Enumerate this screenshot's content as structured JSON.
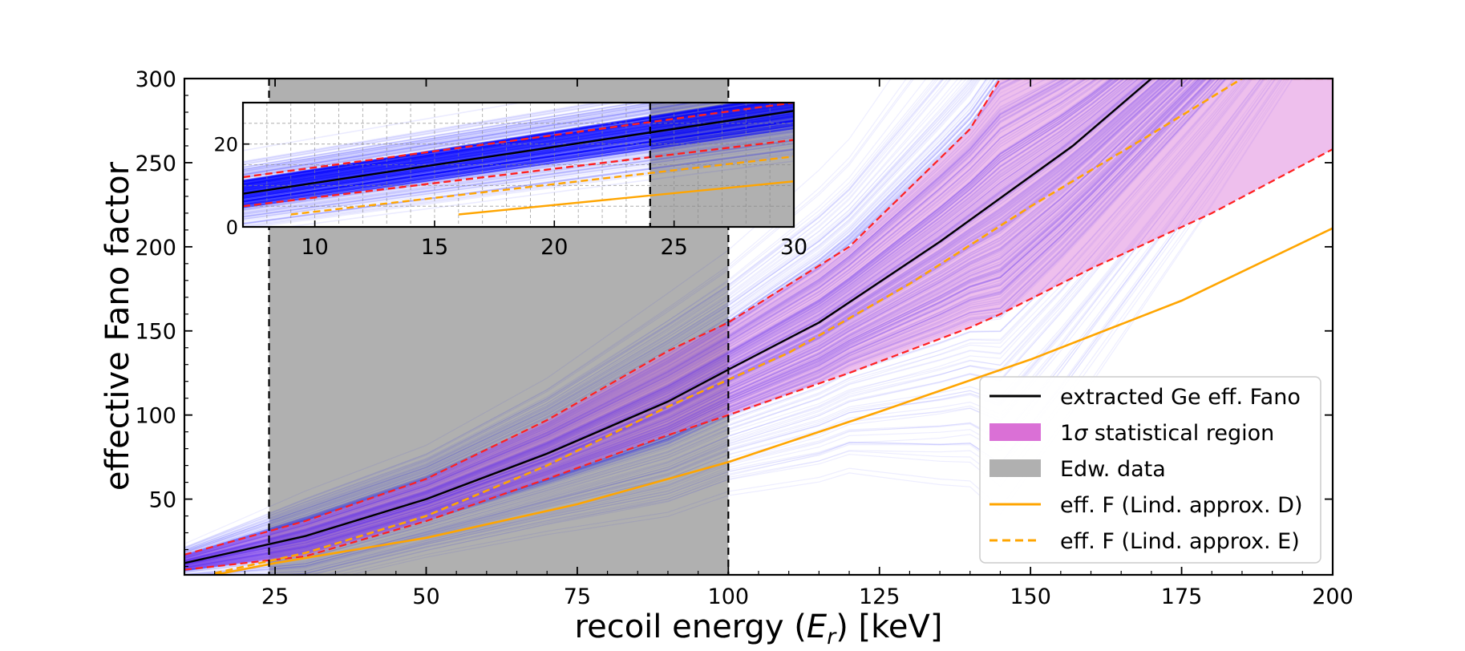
{
  "chart_data": [
    {
      "type": "line",
      "xlabel": "recoil energy (E_r) [keV]",
      "xlabel_parts": {
        "prefix": "recoil energy (",
        "symbol": "E",
        "subscript": "r",
        "suffix": ") [keV]"
      },
      "ylabel": "effective Fano factor",
      "xlim": [
        10,
        200
      ],
      "ylim": [
        5,
        300
      ],
      "xticks": [
        25,
        50,
        75,
        100,
        125,
        150,
        175,
        200
      ],
      "yticks": [
        50,
        100,
        150,
        200,
        250,
        300
      ],
      "grid": false,
      "legend_position": "lower-right",
      "shaded_regions": [
        {
          "name": "Edw. data",
          "x_range": [
            24,
            100
          ],
          "color": "#b0b0b0"
        }
      ],
      "vertical_lines": [
        24,
        100
      ],
      "series": [
        {
          "name": "extracted Ge eff. Fano",
          "color": "#000000",
          "style": "solid",
          "x": [
            10,
            20,
            30,
            50,
            70,
            90,
            100,
            115,
            135,
            157,
            170
          ],
          "values": [
            12,
            20,
            28,
            50,
            77,
            108,
            127,
            155,
            203,
            260,
            300
          ]
        },
        {
          "name": "1σ statistical region",
          "color": "#da70d6",
          "style": "band",
          "x": [
            10,
            30,
            50,
            70,
            90,
            100,
            120,
            140,
            145,
            160,
            180,
            200
          ],
          "upper": [
            17,
            37,
            62,
            97,
            138,
            155,
            200,
            270,
            300,
            300,
            300,
            300
          ],
          "lower": [
            8,
            16,
            37,
            62,
            88,
            100,
            125,
            152,
            160,
            187,
            220,
            258
          ]
        },
        {
          "name": "eff. F (Lind. approx. D)",
          "color": "#ffa500",
          "style": "solid",
          "x": [
            15,
            25,
            50,
            75,
            100,
            125,
            150,
            175,
            200
          ],
          "values": [
            5,
            12,
            27,
            47,
            72,
            102,
            133,
            168,
            211
          ]
        },
        {
          "name": "eff. F (Lind. approx. E)",
          "color": "#ffa500",
          "style": "dashed",
          "x": [
            15,
            30,
            50,
            70,
            90,
            110,
            130,
            150,
            170,
            185
          ],
          "values": [
            6,
            18,
            40,
            70,
            105,
            137,
            178,
            224,
            267,
            300
          ]
        }
      ],
      "legend": [
        {
          "label": "extracted Ge eff. Fano",
          "kind": "line",
          "color": "#000000"
        },
        {
          "label": "statistical region",
          "prefix": "1",
          "symbol": "σ",
          "kind": "patch",
          "color": "#da70d6"
        },
        {
          "label": "Edw. data",
          "kind": "patch",
          "color": "#b0b0b0"
        },
        {
          "label": "eff. F (Lind. approx. D)",
          "kind": "line",
          "color": "#ffa500"
        },
        {
          "label": "eff. F (Lind. approx. E)",
          "kind": "dashed",
          "color": "#ffa500"
        }
      ],
      "mc_curves_color": "#0000ff"
    },
    {
      "type": "line",
      "role": "inset",
      "xlim": [
        7,
        30
      ],
      "ylim": [
        0,
        30
      ],
      "xticks": [
        10,
        15,
        20,
        25,
        30
      ],
      "yticks": [
        0,
        20
      ],
      "grid": true,
      "shaded_regions": [
        {
          "x_range": [
            24,
            30
          ],
          "color": "#b0b0b0"
        }
      ],
      "vertical_lines": [
        24
      ],
      "series": [
        {
          "name": "extracted Ge eff. Fano",
          "color": "#000000",
          "style": "solid",
          "x": [
            7,
            30
          ],
          "values": [
            8,
            28
          ]
        },
        {
          "name": "1σ upper",
          "color": "#ff2020",
          "style": "dashed",
          "x": [
            7,
            30
          ],
          "values": [
            12,
            30
          ]
        },
        {
          "name": "1σ lower",
          "color": "#ff2020",
          "style": "dashed",
          "x": [
            7,
            30
          ],
          "values": [
            5,
            21
          ]
        },
        {
          "name": "eff. F (Lind. approx. E)",
          "color": "#ffa500",
          "style": "dashed",
          "x": [
            9,
            30
          ],
          "values": [
            3,
            17
          ]
        },
        {
          "name": "eff. F (Lind. approx. D)",
          "color": "#ffa500",
          "style": "solid",
          "x": [
            16,
            30
          ],
          "values": [
            3,
            11
          ]
        }
      ]
    }
  ]
}
